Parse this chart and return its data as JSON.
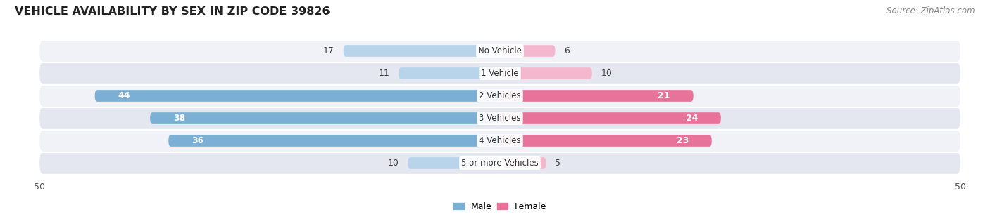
{
  "title": "VEHICLE AVAILABILITY BY SEX IN ZIP CODE 39826",
  "source": "Source: ZipAtlas.com",
  "categories": [
    "No Vehicle",
    "1 Vehicle",
    "2 Vehicles",
    "3 Vehicles",
    "4 Vehicles",
    "5 or more Vehicles"
  ],
  "male_values": [
    17,
    11,
    44,
    38,
    36,
    10
  ],
  "female_values": [
    6,
    10,
    21,
    24,
    23,
    5
  ],
  "male_color_dark": "#7bafd4",
  "male_color_light": "#b8d4eb",
  "female_color_dark": "#e8739a",
  "female_color_light": "#f4b8ce",
  "row_bg_light": "#f0f2f7",
  "row_bg_dark": "#e4e7ef",
  "axis_limit": 50,
  "bar_height": 0.52,
  "title_fontsize": 11.5,
  "source_fontsize": 8.5,
  "value_fontsize": 9,
  "legend_fontsize": 9,
  "category_fontsize": 8.5,
  "male_threshold": 20,
  "female_threshold": 15
}
